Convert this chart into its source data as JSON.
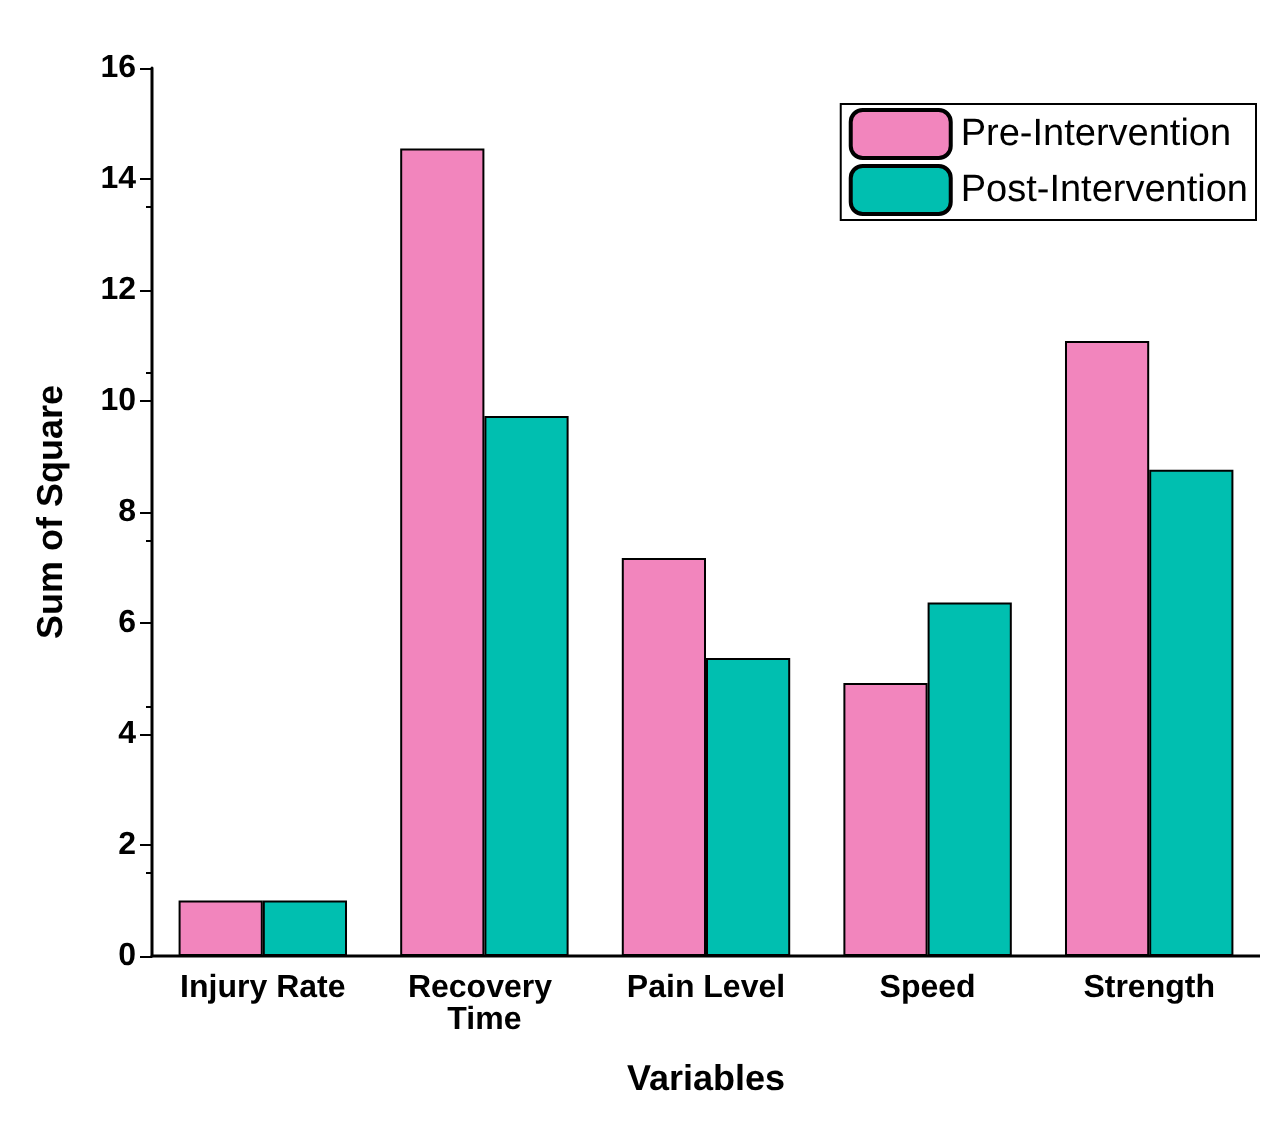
{
  "chart_data": {
    "type": "bar",
    "xlabel": "Variables",
    "ylabel": "Sum of Square",
    "categories": [
      "Injury Rate",
      "Recovery Time",
      "Pain Level",
      "Speed",
      "Strength"
    ],
    "series": [
      {
        "name": "Pre-Intervention",
        "color": "#f285bd",
        "values": [
          1.0,
          14.55,
          7.17,
          4.92,
          11.08
        ]
      },
      {
        "name": "Post-Intervention",
        "color": "#00bfb0",
        "values": [
          1.0,
          9.73,
          5.37,
          6.37,
          8.76
        ]
      }
    ],
    "ylim": [
      0,
      16
    ],
    "yticks": [
      0,
      2,
      4,
      6,
      8,
      10,
      12,
      14,
      16
    ],
    "grid": false,
    "legend": "top right"
  }
}
